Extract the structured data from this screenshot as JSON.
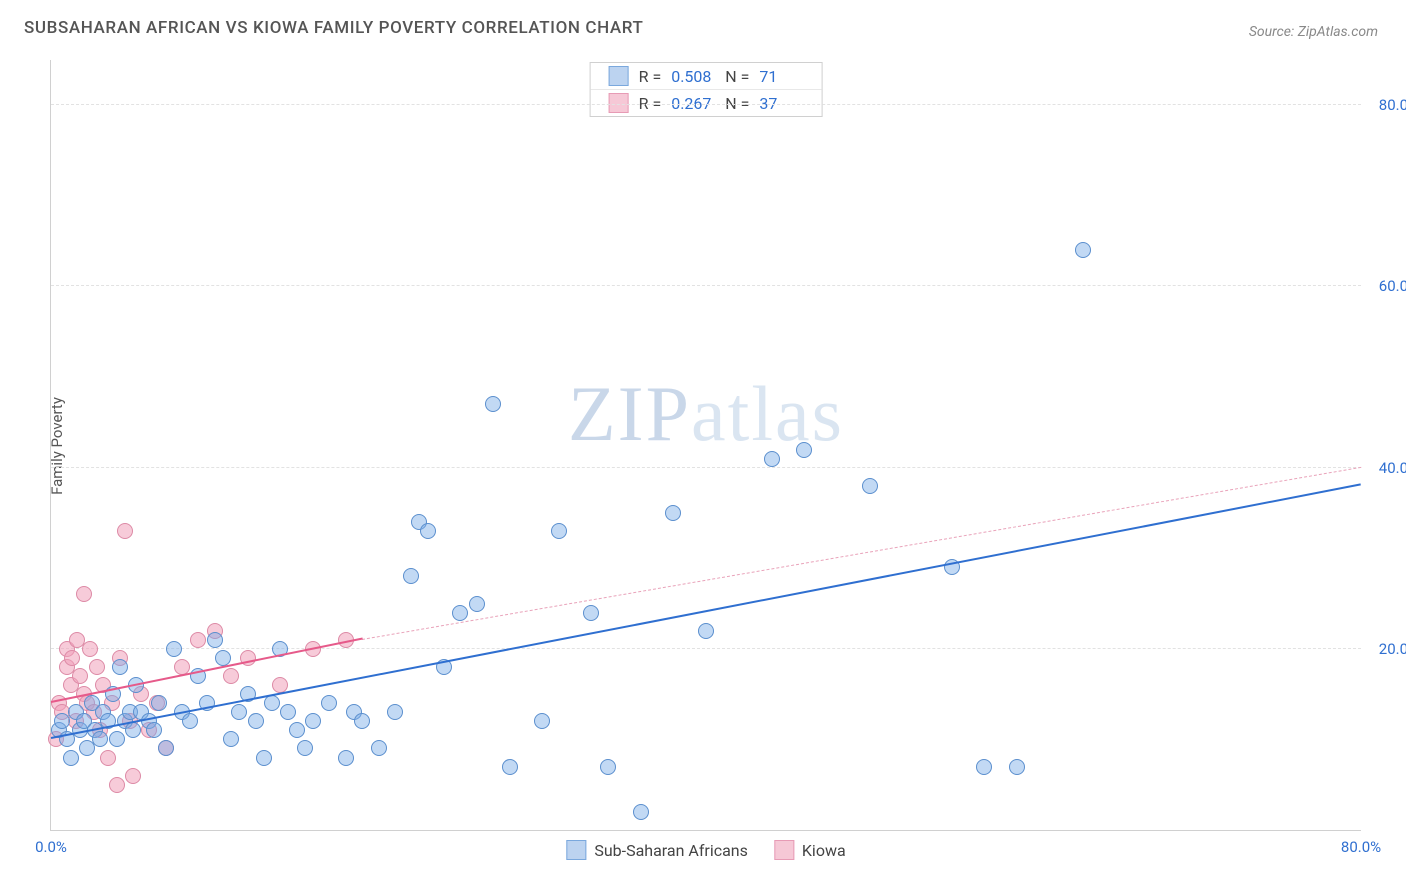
{
  "title": "SUBSAHARAN AFRICAN VS KIOWA FAMILY POVERTY CORRELATION CHART",
  "source_label": "Source: ",
  "source_name": "ZipAtlas.com",
  "ylabel": "Family Poverty",
  "watermark_a": "ZIP",
  "watermark_b": "atlas",
  "chart": {
    "type": "scatter",
    "xlim": [
      0,
      80
    ],
    "ylim": [
      0,
      85
    ],
    "x_ticks": [
      {
        "v": 0,
        "label": "0.0%"
      },
      {
        "v": 80,
        "label": "80.0%"
      }
    ],
    "y_ticks": [
      {
        "v": 20,
        "label": "20.0%"
      },
      {
        "v": 40,
        "label": "40.0%"
      },
      {
        "v": 60,
        "label": "60.0%"
      },
      {
        "v": 80,
        "label": "80.0%"
      }
    ],
    "tick_color": "#2f6fd0",
    "tick_fontsize": 15,
    "grid_color": "#e2e2e2",
    "background_color": "#ffffff",
    "marker_radius": 8,
    "marker_border_width": 1.5,
    "series": [
      {
        "name": "Sub-Saharan Africans",
        "fill": "rgba(120,170,230,0.45)",
        "stroke": "#5b8fce",
        "swatch_fill": "#bcd3f0",
        "swatch_border": "#7aa8dd",
        "reg": {
          "x1": 0,
          "y1": 10,
          "x2": 80,
          "y2": 38,
          "color": "#2f6fd0",
          "width": 2.5,
          "dash": "none"
        },
        "reg_ext": null,
        "R": "0.508",
        "N": "71",
        "points": [
          [
            0.5,
            11
          ],
          [
            0.7,
            12
          ],
          [
            1,
            10
          ],
          [
            1.2,
            8
          ],
          [
            1.5,
            13
          ],
          [
            1.8,
            11
          ],
          [
            2,
            12
          ],
          [
            2.2,
            9
          ],
          [
            2.5,
            14
          ],
          [
            2.7,
            11
          ],
          [
            3,
            10
          ],
          [
            3.2,
            13
          ],
          [
            3.5,
            12
          ],
          [
            3.8,
            15
          ],
          [
            4,
            10
          ],
          [
            4.2,
            18
          ],
          [
            4.5,
            12
          ],
          [
            4.8,
            13
          ],
          [
            5,
            11
          ],
          [
            5.2,
            16
          ],
          [
            5.5,
            13
          ],
          [
            6,
            12
          ],
          [
            6.3,
            11
          ],
          [
            6.6,
            14
          ],
          [
            7,
            9
          ],
          [
            7.5,
            20
          ],
          [
            8,
            13
          ],
          [
            8.5,
            12
          ],
          [
            9,
            17
          ],
          [
            9.5,
            14
          ],
          [
            10,
            21
          ],
          [
            10.5,
            19
          ],
          [
            11,
            10
          ],
          [
            11.5,
            13
          ],
          [
            12,
            15
          ],
          [
            12.5,
            12
          ],
          [
            13,
            8
          ],
          [
            13.5,
            14
          ],
          [
            14,
            20
          ],
          [
            14.5,
            13
          ],
          [
            15,
            11
          ],
          [
            15.5,
            9
          ],
          [
            16,
            12
          ],
          [
            17,
            14
          ],
          [
            18,
            8
          ],
          [
            18.5,
            13
          ],
          [
            19,
            12
          ],
          [
            20,
            9
          ],
          [
            21,
            13
          ],
          [
            22,
            28
          ],
          [
            22.5,
            34
          ],
          [
            23,
            33
          ],
          [
            24,
            18
          ],
          [
            25,
            24
          ],
          [
            26,
            25
          ],
          [
            27,
            47
          ],
          [
            28,
            7
          ],
          [
            30,
            12
          ],
          [
            31,
            33
          ],
          [
            33,
            24
          ],
          [
            34,
            7
          ],
          [
            36,
            2
          ],
          [
            38,
            35
          ],
          [
            40,
            22
          ],
          [
            44,
            41
          ],
          [
            46,
            42
          ],
          [
            50,
            38
          ],
          [
            55,
            29
          ],
          [
            57,
            7
          ],
          [
            59,
            7
          ],
          [
            63,
            64
          ]
        ]
      },
      {
        "name": "Kiowa",
        "fill": "rgba(240,160,185,0.55)",
        "stroke": "#dd8aa6",
        "swatch_fill": "#f6c8d6",
        "swatch_border": "#e79bb5",
        "reg": {
          "x1": 0,
          "y1": 14,
          "x2": 19,
          "y2": 21,
          "color": "#e65a8a",
          "width": 2,
          "dash": "none"
        },
        "reg_ext": {
          "x1": 19,
          "y1": 21,
          "x2": 80,
          "y2": 40,
          "color": "#e9a3ba",
          "width": 1,
          "dash": "4,4"
        },
        "R": "0.267",
        "N": "37",
        "points": [
          [
            0.3,
            10
          ],
          [
            0.5,
            14
          ],
          [
            0.7,
            13
          ],
          [
            1,
            18
          ],
          [
            1,
            20
          ],
          [
            1.2,
            16
          ],
          [
            1.3,
            19
          ],
          [
            1.5,
            12
          ],
          [
            1.6,
            21
          ],
          [
            1.8,
            17
          ],
          [
            2,
            26
          ],
          [
            2,
            15
          ],
          [
            2.2,
            14
          ],
          [
            2.4,
            20
          ],
          [
            2.6,
            13
          ],
          [
            2.8,
            18
          ],
          [
            3,
            11
          ],
          [
            3.2,
            16
          ],
          [
            3.5,
            8
          ],
          [
            3.7,
            14
          ],
          [
            4,
            5
          ],
          [
            4.2,
            19
          ],
          [
            4.5,
            33
          ],
          [
            4.8,
            12
          ],
          [
            5,
            6
          ],
          [
            5.5,
            15
          ],
          [
            6,
            11
          ],
          [
            6.5,
            14
          ],
          [
            7,
            9
          ],
          [
            8,
            18
          ],
          [
            9,
            21
          ],
          [
            10,
            22
          ],
          [
            11,
            17
          ],
          [
            12,
            19
          ],
          [
            14,
            16
          ],
          [
            16,
            20
          ],
          [
            18,
            21
          ]
        ]
      }
    ],
    "stats_labels": {
      "R": "R =",
      "N": "N ="
    },
    "legend_labels": [
      "Sub-Saharan Africans",
      "Kiowa"
    ]
  }
}
